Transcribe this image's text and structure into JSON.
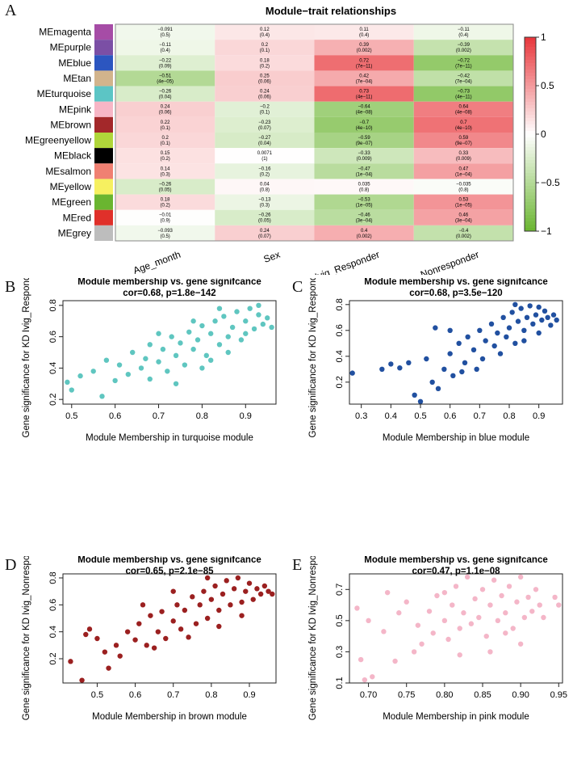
{
  "panel_letters": [
    "A",
    "B",
    "C",
    "D",
    "E"
  ],
  "chart_data": [
    {
      "type": "heatmap",
      "title": "Module−trait relationships",
      "rows": [
        "MEmagenta",
        "MEpurple",
        "MEblue",
        "MEtan",
        "MEturquoise",
        "MEpink",
        "MEbrown",
        "MEgreenyellow",
        "MEblack",
        "MEsalmon",
        "MEyellow",
        "MEgreen",
        "MEred",
        "MEgrey"
      ],
      "row_colors": [
        "#a64ca6",
        "#7b4fa5",
        "#2c56c0",
        "#d2b48c",
        "#5cc5c5",
        "#f7b6c6",
        "#a3282a",
        "#b0d63a",
        "#000000",
        "#f08072",
        "#f6f060",
        "#6ab530",
        "#e0302a",
        "#bdbdbd"
      ],
      "columns": [
        "Age_month",
        "Sex",
        "Ivig_Responder",
        "Ivig_Nonresponder"
      ],
      "values": [
        [
          -0.091,
          0.12,
          0.11,
          -0.11
        ],
        [
          -0.11,
          0.2,
          0.39,
          -0.39
        ],
        [
          -0.22,
          0.18,
          0.72,
          -0.72
        ],
        [
          -0.51,
          0.25,
          0.42,
          -0.42
        ],
        [
          -0.26,
          0.24,
          0.73,
          -0.73
        ],
        [
          0.24,
          -0.2,
          -0.64,
          0.64
        ],
        [
          0.22,
          -0.23,
          -0.7,
          0.7
        ],
        [
          0.2,
          -0.27,
          -0.59,
          0.59
        ],
        [
          0.15,
          0.0071,
          -0.33,
          0.33
        ],
        [
          0.14,
          -0.16,
          -0.47,
          0.47
        ],
        [
          -0.26,
          0.04,
          0.035,
          -0.035
        ],
        [
          0.18,
          -0.13,
          -0.53,
          0.53
        ],
        [
          -0.01,
          -0.26,
          -0.46,
          0.46
        ],
        [
          -0.093,
          0.24,
          0.4,
          -0.4
        ]
      ],
      "value_labels": [
        [
          "−0.091",
          "0.12",
          "0.11",
          "−0.11"
        ],
        [
          "−0.11",
          "0.2",
          "0.39",
          "−0.39"
        ],
        [
          "−0.22",
          "0.18",
          "0.72",
          "−0.72"
        ],
        [
          "−0.51",
          "0.25",
          "0.42",
          "−0.42"
        ],
        [
          "−0.26",
          "0.24",
          "0.73",
          "−0.73"
        ],
        [
          "0.24",
          "−0.2",
          "−0.64",
          "0.64"
        ],
        [
          "0.22",
          "−0.23",
          "−0.7",
          "0.7"
        ],
        [
          "0.2",
          "−0.27",
          "−0.59",
          "0.59"
        ],
        [
          "0.15",
          "0.0071",
          "−0.33",
          "0.33"
        ],
        [
          "0.14",
          "−0.16",
          "−0.47",
          "0.47"
        ],
        [
          "−0.26",
          "0.04",
          "0.035",
          "−0.035"
        ],
        [
          "0.18",
          "−0.13",
          "−0.53",
          "0.53"
        ],
        [
          "−0.01",
          "−0.26",
          "−0.46",
          "0.46"
        ],
        [
          "−0.093",
          "0.24",
          "0.4",
          "−0.4"
        ]
      ],
      "p_values": [
        [
          "(0.5)",
          "(0.4)",
          "(0.4)",
          "(0.4)"
        ],
        [
          "(0.4)",
          "(0.1)",
          "(0.002)",
          "(0.002)"
        ],
        [
          "(0.09)",
          "(0.2)",
          "(7e−11)",
          "(7e−11)"
        ],
        [
          "(4e−05)",
          "(0.06)",
          "(7e−04)",
          "(7e−04)"
        ],
        [
          "(0.04)",
          "(0.06)",
          "(4e−11)",
          "(4e−11)"
        ],
        [
          "(0.06)",
          "(0.1)",
          "(4e−08)",
          "(4e−08)"
        ],
        [
          "(0.1)",
          "(0.07)",
          "(4e−10)",
          "(4e−10)"
        ],
        [
          "(0.1)",
          "(0.04)",
          "(9e−07)",
          "(9e−07)"
        ],
        [
          "(0.2)",
          "(1)",
          "(0.009)",
          "(0.009)"
        ],
        [
          "(0.3)",
          "(0.2)",
          "(1e−04)",
          "(1e−04)"
        ],
        [
          "(0.05)",
          "(0.8)",
          "(0.8)",
          "(0.8)"
        ],
        [
          "(0.2)",
          "(0.3)",
          "(1e−05)",
          "(1e−05)"
        ],
        [
          "(0.9)",
          "(0.05)",
          "(3e−04)",
          "(3e−04)"
        ],
        [
          "(0.5)",
          "(0.07)",
          "(0.002)",
          "(0.002)"
        ]
      ],
      "colorbar": {
        "ticks": [
          "1",
          "0.5",
          "0",
          "−0.5",
          "−1"
        ],
        "range": [
          -1,
          1
        ],
        "low_color": "#6ab530",
        "mid_color": "#ffffff",
        "high_color": "#e8353a"
      }
    },
    {
      "type": "scatter",
      "title": "Module membership vs. gene signifcance",
      "subtitle": "cor=0.68, p=1.8e−142",
      "xlabel": "Module Membership in turquoise module",
      "ylabel": "Gene significance for KD Ivig_Responder",
      "xlim": [
        0.48,
        0.97
      ],
      "ylim": [
        0.17,
        0.83
      ],
      "xticks": [
        "0.5",
        "0.6",
        "0.7",
        "0.8",
        "0.9"
      ],
      "yticks": [
        "0.2",
        "0.4",
        "0.6",
        "0.8"
      ],
      "color": "#5fc6c0",
      "points": [
        [
          0.49,
          0.31
        ],
        [
          0.5,
          0.26
        ],
        [
          0.52,
          0.35
        ],
        [
          0.55,
          0.38
        ],
        [
          0.57,
          0.22
        ],
        [
          0.58,
          0.45
        ],
        [
          0.6,
          0.32
        ],
        [
          0.61,
          0.42
        ],
        [
          0.63,
          0.36
        ],
        [
          0.64,
          0.5
        ],
        [
          0.66,
          0.4
        ],
        [
          0.67,
          0.46
        ],
        [
          0.68,
          0.55
        ],
        [
          0.7,
          0.44
        ],
        [
          0.71,
          0.52
        ],
        [
          0.72,
          0.38
        ],
        [
          0.73,
          0.6
        ],
        [
          0.74,
          0.48
        ],
        [
          0.75,
          0.56
        ],
        [
          0.76,
          0.42
        ],
        [
          0.77,
          0.63
        ],
        [
          0.78,
          0.52
        ],
        [
          0.79,
          0.58
        ],
        [
          0.8,
          0.67
        ],
        [
          0.81,
          0.48
        ],
        [
          0.82,
          0.62
        ],
        [
          0.83,
          0.7
        ],
        [
          0.84,
          0.55
        ],
        [
          0.85,
          0.73
        ],
        [
          0.86,
          0.6
        ],
        [
          0.87,
          0.66
        ],
        [
          0.88,
          0.76
        ],
        [
          0.89,
          0.58
        ],
        [
          0.9,
          0.7
        ],
        [
          0.91,
          0.78
        ],
        [
          0.92,
          0.65
        ],
        [
          0.93,
          0.74
        ],
        [
          0.94,
          0.68
        ],
        [
          0.95,
          0.72
        ],
        [
          0.96,
          0.66
        ],
        [
          0.74,
          0.3
        ],
        [
          0.8,
          0.4
        ],
        [
          0.86,
          0.5
        ],
        [
          0.9,
          0.62
        ],
        [
          0.68,
          0.33
        ],
        [
          0.78,
          0.7
        ],
        [
          0.84,
          0.78
        ],
        [
          0.7,
          0.62
        ],
        [
          0.93,
          0.8
        ],
        [
          0.82,
          0.45
        ]
      ]
    },
    {
      "type": "scatter",
      "title": "Module membership vs. gene signifcance",
      "subtitle": "cor=0.68, p=3.5e−120",
      "xlabel": "Module Membership in blue module",
      "ylabel": "Gene significance for KD Ivig_Responder",
      "xlim": [
        0.26,
        0.98
      ],
      "ylim": [
        0.03,
        0.83
      ],
      "xticks": [
        "0.3",
        "0.4",
        "0.5",
        "0.6",
        "0.7",
        "0.8",
        "0.9"
      ],
      "yticks": [
        "0.2",
        "0.4",
        "0.6",
        "0.8"
      ],
      "color": "#2150a0",
      "points": [
        [
          0.27,
          0.27
        ],
        [
          0.37,
          0.3
        ],
        [
          0.4,
          0.34
        ],
        [
          0.43,
          0.31
        ],
        [
          0.46,
          0.35
        ],
        [
          0.48,
          0.1
        ],
        [
          0.5,
          0.05
        ],
        [
          0.52,
          0.38
        ],
        [
          0.54,
          0.2
        ],
        [
          0.55,
          0.62
        ],
        [
          0.56,
          0.15
        ],
        [
          0.58,
          0.3
        ],
        [
          0.6,
          0.42
        ],
        [
          0.61,
          0.25
        ],
        [
          0.63,
          0.5
        ],
        [
          0.65,
          0.35
        ],
        [
          0.66,
          0.55
        ],
        [
          0.68,
          0.45
        ],
        [
          0.7,
          0.6
        ],
        [
          0.71,
          0.38
        ],
        [
          0.72,
          0.52
        ],
        [
          0.74,
          0.65
        ],
        [
          0.75,
          0.48
        ],
        [
          0.76,
          0.58
        ],
        [
          0.78,
          0.7
        ],
        [
          0.79,
          0.55
        ],
        [
          0.8,
          0.62
        ],
        [
          0.81,
          0.74
        ],
        [
          0.82,
          0.5
        ],
        [
          0.83,
          0.67
        ],
        [
          0.84,
          0.77
        ],
        [
          0.85,
          0.6
        ],
        [
          0.86,
          0.7
        ],
        [
          0.87,
          0.79
        ],
        [
          0.88,
          0.65
        ],
        [
          0.89,
          0.72
        ],
        [
          0.9,
          0.78
        ],
        [
          0.91,
          0.68
        ],
        [
          0.92,
          0.75
        ],
        [
          0.93,
          0.7
        ],
        [
          0.94,
          0.64
        ],
        [
          0.95,
          0.72
        ],
        [
          0.96,
          0.68
        ],
        [
          0.6,
          0.6
        ],
        [
          0.64,
          0.28
        ],
        [
          0.77,
          0.42
        ],
        [
          0.85,
          0.52
        ],
        [
          0.9,
          0.58
        ],
        [
          0.69,
          0.3
        ],
        [
          0.82,
          0.8
        ]
      ]
    },
    {
      "type": "scatter",
      "title": "Module membership vs. gene signifcance",
      "subtitle": "cor=0.65, p=2.1e−85",
      "xlabel": "Module Membership in brown module",
      "ylabel": "Gene significance for KD Ivig_Nonresponder",
      "xlim": [
        0.41,
        0.97
      ],
      "ylim": [
        0.02,
        0.83
      ],
      "xticks": [
        "0.5",
        "0.6",
        "0.7",
        "0.8",
        "0.9"
      ],
      "yticks": [
        "0.2",
        "0.4",
        "0.6",
        "0.8"
      ],
      "color": "#9b2020",
      "points": [
        [
          0.43,
          0.18
        ],
        [
          0.46,
          0.04
        ],
        [
          0.47,
          0.38
        ],
        [
          0.48,
          0.42
        ],
        [
          0.5,
          0.35
        ],
        [
          0.52,
          0.25
        ],
        [
          0.53,
          0.13
        ],
        [
          0.55,
          0.3
        ],
        [
          0.56,
          0.22
        ],
        [
          0.58,
          0.4
        ],
        [
          0.6,
          0.34
        ],
        [
          0.61,
          0.46
        ],
        [
          0.63,
          0.3
        ],
        [
          0.64,
          0.52
        ],
        [
          0.66,
          0.4
        ],
        [
          0.67,
          0.55
        ],
        [
          0.68,
          0.35
        ],
        [
          0.7,
          0.48
        ],
        [
          0.71,
          0.6
        ],
        [
          0.72,
          0.42
        ],
        [
          0.73,
          0.56
        ],
        [
          0.75,
          0.66
        ],
        [
          0.76,
          0.46
        ],
        [
          0.77,
          0.6
        ],
        [
          0.78,
          0.7
        ],
        [
          0.79,
          0.5
        ],
        [
          0.8,
          0.64
        ],
        [
          0.81,
          0.74
        ],
        [
          0.82,
          0.56
        ],
        [
          0.83,
          0.68
        ],
        [
          0.84,
          0.78
        ],
        [
          0.85,
          0.6
        ],
        [
          0.86,
          0.72
        ],
        [
          0.87,
          0.8
        ],
        [
          0.88,
          0.62
        ],
        [
          0.89,
          0.7
        ],
        [
          0.9,
          0.76
        ],
        [
          0.91,
          0.64
        ],
        [
          0.92,
          0.72
        ],
        [
          0.93,
          0.68
        ],
        [
          0.94,
          0.74
        ],
        [
          0.95,
          0.7
        ],
        [
          0.96,
          0.68
        ],
        [
          0.65,
          0.28
        ],
        [
          0.74,
          0.36
        ],
        [
          0.82,
          0.44
        ],
        [
          0.88,
          0.52
        ],
        [
          0.62,
          0.6
        ],
        [
          0.7,
          0.7
        ],
        [
          0.79,
          0.8
        ]
      ]
    },
    {
      "type": "scatter",
      "title": "Module membership vs. gene signifcance",
      "subtitle": "cor=0.47, p=1.1e−08",
      "xlabel": "Module Membership in pink module",
      "ylabel": "Gene significance for KD Ivig_Nonresponder",
      "xlim": [
        0.675,
        0.955
      ],
      "ylim": [
        0.1,
        0.8
      ],
      "xticks": [
        "0.70",
        "0.75",
        "0.80",
        "0.85",
        "0.90",
        "0.95"
      ],
      "yticks": [
        "0.1",
        "0.3",
        "0.5",
        "0.7"
      ],
      "color": "#f4b6c8",
      "points": [
        [
          0.685,
          0.58
        ],
        [
          0.69,
          0.25
        ],
        [
          0.695,
          0.12
        ],
        [
          0.7,
          0.5
        ],
        [
          0.705,
          0.14
        ],
        [
          0.72,
          0.43
        ],
        [
          0.725,
          0.68
        ],
        [
          0.735,
          0.24
        ],
        [
          0.74,
          0.55
        ],
        [
          0.75,
          0.62
        ],
        [
          0.76,
          0.3
        ],
        [
          0.765,
          0.47
        ],
        [
          0.77,
          0.35
        ],
        [
          0.78,
          0.56
        ],
        [
          0.785,
          0.42
        ],
        [
          0.79,
          0.66
        ],
        [
          0.8,
          0.5
        ],
        [
          0.805,
          0.38
        ],
        [
          0.81,
          0.6
        ],
        [
          0.815,
          0.72
        ],
        [
          0.82,
          0.45
        ],
        [
          0.825,
          0.55
        ],
        [
          0.83,
          0.78
        ],
        [
          0.835,
          0.48
        ],
        [
          0.84,
          0.64
        ],
        [
          0.845,
          0.52
        ],
        [
          0.85,
          0.7
        ],
        [
          0.855,
          0.4
        ],
        [
          0.86,
          0.6
        ],
        [
          0.865,
          0.76
        ],
        [
          0.87,
          0.5
        ],
        [
          0.875,
          0.66
        ],
        [
          0.88,
          0.55
        ],
        [
          0.885,
          0.72
        ],
        [
          0.89,
          0.45
        ],
        [
          0.895,
          0.62
        ],
        [
          0.9,
          0.78
        ],
        [
          0.905,
          0.52
        ],
        [
          0.91,
          0.65
        ],
        [
          0.915,
          0.56
        ],
        [
          0.92,
          0.7
        ],
        [
          0.925,
          0.6
        ],
        [
          0.93,
          0.52
        ],
        [
          0.945,
          0.65
        ],
        [
          0.95,
          0.6
        ],
        [
          0.86,
          0.3
        ],
        [
          0.88,
          0.42
        ],
        [
          0.82,
          0.28
        ],
        [
          0.9,
          0.35
        ],
        [
          0.8,
          0.68
        ]
      ]
    }
  ]
}
